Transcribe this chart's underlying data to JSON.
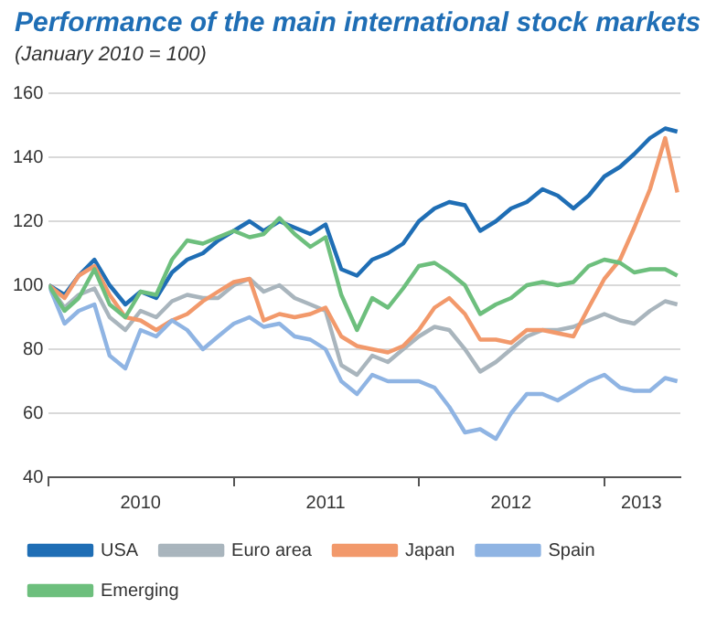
{
  "chart_data": {
    "type": "line",
    "title": "Performance of the main international stock markets",
    "subtitle": "(January 2010 = 100)",
    "x": [
      "2010-01",
      "2010-02",
      "2010-03",
      "2010-04",
      "2010-05",
      "2010-06",
      "2010-07",
      "2010-08",
      "2010-09",
      "2010-10",
      "2010-11",
      "2010-12",
      "2011-01",
      "2011-02",
      "2011-03",
      "2011-04",
      "2011-05",
      "2011-06",
      "2011-07",
      "2011-08",
      "2011-09",
      "2011-10",
      "2011-11",
      "2011-12",
      "2012-01",
      "2012-02",
      "2012-03",
      "2012-04",
      "2012-05",
      "2012-06",
      "2012-07",
      "2012-08",
      "2012-09",
      "2012-10",
      "2012-11",
      "2012-12",
      "2013-01",
      "2013-02",
      "2013-03",
      "2013-04",
      "2013-05",
      "2013-05-25"
    ],
    "series": [
      {
        "name": "USA",
        "color": "#1f6eb5",
        "values": [
          100,
          97,
          103,
          108,
          100,
          94,
          98,
          96,
          104,
          108,
          110,
          114,
          117,
          120,
          117,
          120,
          118,
          116,
          119,
          105,
          103,
          108,
          110,
          113,
          120,
          124,
          126,
          125,
          117,
          120,
          124,
          126,
          130,
          128,
          124,
          128,
          134,
          137,
          141,
          146,
          149,
          148
        ]
      },
      {
        "name": "Euro area",
        "color": "#a9b5bd",
        "values": [
          100,
          93,
          97,
          99,
          90,
          86,
          92,
          90,
          95,
          97,
          96,
          96,
          100,
          102,
          98,
          100,
          96,
          94,
          92,
          75,
          72,
          78,
          76,
          80,
          84,
          87,
          86,
          80,
          73,
          76,
          80,
          84,
          86,
          86,
          87,
          89,
          91,
          89,
          88,
          92,
          95,
          94
        ]
      },
      {
        "name": "Japan",
        "color": "#f2996b",
        "values": [
          100,
          96,
          103,
          106,
          97,
          90,
          89,
          86,
          89,
          91,
          95,
          98,
          101,
          102,
          89,
          91,
          90,
          91,
          93,
          84,
          81,
          80,
          79,
          81,
          86,
          93,
          96,
          91,
          83,
          83,
          82,
          86,
          86,
          85,
          84,
          93,
          102,
          108,
          118,
          130,
          146,
          129
        ]
      },
      {
        "name": "Spain",
        "color": "#8fb4e3",
        "values": [
          100,
          88,
          92,
          94,
          78,
          74,
          86,
          84,
          89,
          86,
          80,
          84,
          88,
          90,
          87,
          88,
          84,
          83,
          80,
          70,
          66,
          72,
          70,
          70,
          70,
          68,
          62,
          54,
          55,
          52,
          60,
          66,
          66,
          64,
          67,
          70,
          72,
          68,
          67,
          67,
          71,
          70
        ]
      },
      {
        "name": "Emerging",
        "color": "#6dbf7d",
        "values": [
          100,
          92,
          96,
          105,
          94,
          90,
          98,
          97,
          108,
          114,
          113,
          115,
          117,
          115,
          116,
          121,
          116,
          112,
          115,
          97,
          86,
          96,
          93,
          99,
          106,
          107,
          104,
          100,
          91,
          94,
          96,
          100,
          101,
          100,
          101,
          106,
          108,
          107,
          104,
          105,
          105,
          103
        ]
      }
    ],
    "xlim": [
      "2010-01-01",
      "2013-05-31"
    ],
    "xticks": [
      {
        "value": "2010-01-01",
        "label": null
      },
      {
        "value": "2010-07-01",
        "label": "2010"
      },
      {
        "value": "2011-01-01",
        "label": null
      },
      {
        "value": "2011-07-01",
        "label": "2011"
      },
      {
        "value": "2012-01-01",
        "label": null
      },
      {
        "value": "2012-07-01",
        "label": "2012"
      },
      {
        "value": "2013-01-01",
        "label": null
      },
      {
        "value": "2013-03-15",
        "label": "2013"
      }
    ],
    "ylim": [
      40,
      160
    ],
    "yticks": [
      40,
      60,
      80,
      100,
      120,
      140,
      160
    ],
    "grid": "y",
    "legend": "bottom",
    "marker": "none",
    "line_style": "solid"
  }
}
